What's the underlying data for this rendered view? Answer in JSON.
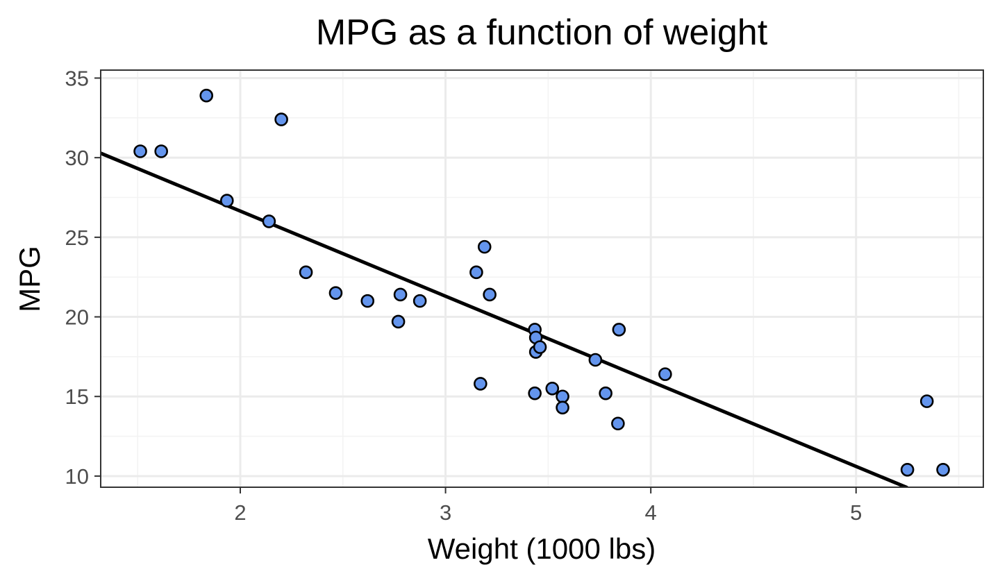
{
  "chart_data": {
    "type": "scatter",
    "title": "MPG as a function of weight",
    "xlabel": "Weight (1000 lbs)",
    "ylabel": "MPG",
    "xlim": [
      1.32,
      5.62
    ],
    "ylim": [
      9.3,
      35.5
    ],
    "x_ticks": [
      2,
      3,
      4,
      5
    ],
    "y_ticks": [
      10,
      15,
      20,
      25,
      30,
      35
    ],
    "x_minor_ticks": [
      1.5,
      2.5,
      3.5,
      4.5,
      5.5
    ],
    "y_minor_ticks": [
      12.5,
      17.5,
      22.5,
      27.5,
      32.5
    ],
    "grid": true,
    "point_color": "#6495ED",
    "point_border_color": "#000000",
    "line_color": "#000000",
    "points": [
      {
        "x": 1.513,
        "y": 30.4
      },
      {
        "x": 1.615,
        "y": 30.4
      },
      {
        "x": 1.835,
        "y": 33.9
      },
      {
        "x": 1.935,
        "y": 27.3
      },
      {
        "x": 2.14,
        "y": 26.0
      },
      {
        "x": 2.2,
        "y": 32.4
      },
      {
        "x": 2.32,
        "y": 22.8
      },
      {
        "x": 2.465,
        "y": 21.5
      },
      {
        "x": 2.62,
        "y": 21.0
      },
      {
        "x": 2.77,
        "y": 19.7
      },
      {
        "x": 2.78,
        "y": 21.4
      },
      {
        "x": 2.875,
        "y": 21.0
      },
      {
        "x": 3.15,
        "y": 22.8
      },
      {
        "x": 3.17,
        "y": 15.8
      },
      {
        "x": 3.19,
        "y": 24.4
      },
      {
        "x": 3.215,
        "y": 21.4
      },
      {
        "x": 3.435,
        "y": 19.2
      },
      {
        "x": 3.44,
        "y": 18.7
      },
      {
        "x": 3.44,
        "y": 17.8
      },
      {
        "x": 3.46,
        "y": 18.1
      },
      {
        "x": 3.435,
        "y": 15.2
      },
      {
        "x": 3.52,
        "y": 15.5
      },
      {
        "x": 3.57,
        "y": 15.0
      },
      {
        "x": 3.57,
        "y": 14.3
      },
      {
        "x": 3.73,
        "y": 17.3
      },
      {
        "x": 3.78,
        "y": 15.2
      },
      {
        "x": 3.84,
        "y": 13.3
      },
      {
        "x": 3.845,
        "y": 19.2
      },
      {
        "x": 4.07,
        "y": 16.4
      },
      {
        "x": 5.25,
        "y": 10.4
      },
      {
        "x": 5.345,
        "y": 14.7
      },
      {
        "x": 5.424,
        "y": 10.4
      }
    ],
    "fit_line": {
      "x": [
        1.32,
        5.25
      ],
      "y": [
        30.28,
        9.27
      ]
    }
  }
}
